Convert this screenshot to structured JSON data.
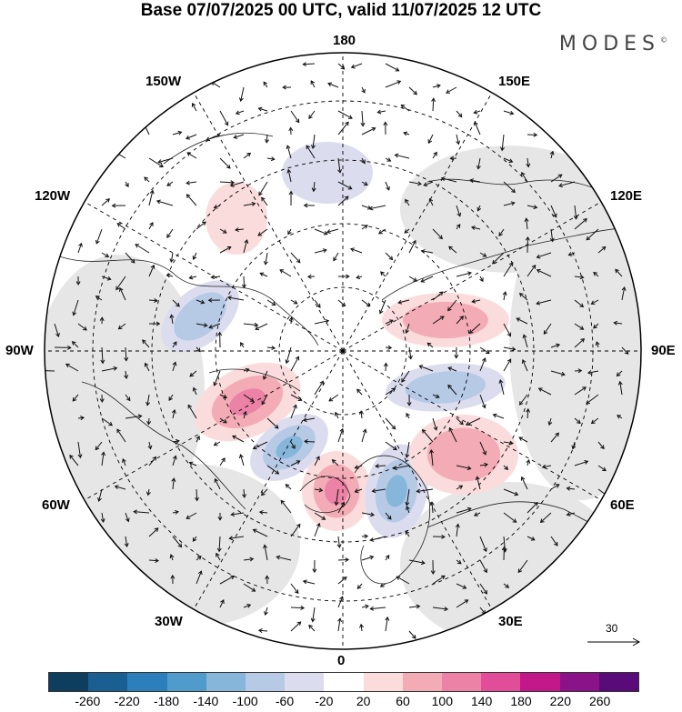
{
  "title": "Base 07/07/2025 00 UTC, valid 11/07/2025 12 UTC",
  "brand": "MODES",
  "brand_mark": "©",
  "longitude_labels": {
    "top": "180",
    "bottom": "0",
    "left": "90W",
    "right": "90E",
    "upper_left": "150W",
    "upper_left_2": "120W",
    "upper_right": "150E",
    "upper_right_2": "120E",
    "lower_left": "60W",
    "lower_left_2": "30W",
    "lower_right": "60E",
    "lower_right_2": "30E"
  },
  "reference_vector": "30",
  "colorbar": {
    "ticks": [
      "-260",
      "-220",
      "-180",
      "-140",
      "-100",
      "-60",
      "-20",
      "20",
      "60",
      "100",
      "140",
      "180",
      "220",
      "260"
    ],
    "colors": [
      "#0d3e5e",
      "#1a5f92",
      "#2b7fbb",
      "#4f9bcb",
      "#86b6da",
      "#b6c9e5",
      "#dcdcef",
      "#ffffff",
      "#fbdcdc",
      "#f3acb6",
      "#ec82a6",
      "#e24d9a",
      "#c2188a",
      "#8b1389",
      "#5a0b7a"
    ]
  },
  "anomalies": [
    {
      "sign": "positive",
      "level": 3,
      "region": "Labrador / Greenland south"
    },
    {
      "sign": "negative",
      "level": 3,
      "region": "North Atlantic west"
    },
    {
      "sign": "positive",
      "level": 3,
      "region": "British Isles"
    },
    {
      "sign": "negative",
      "level": 3,
      "region": "Scandinavia"
    },
    {
      "sign": "negative",
      "level": 2,
      "region": "Kara Sea"
    },
    {
      "sign": "positive",
      "level": 2,
      "region": "Siberia"
    },
    {
      "sign": "positive",
      "level": 2,
      "region": "Urals"
    },
    {
      "sign": "negative",
      "level": 2,
      "region": "Canadian Arctic"
    },
    {
      "sign": "negative",
      "level": 1,
      "region": "Bering Strait"
    },
    {
      "sign": "positive",
      "level": 1,
      "region": "Alaska"
    }
  ]
}
